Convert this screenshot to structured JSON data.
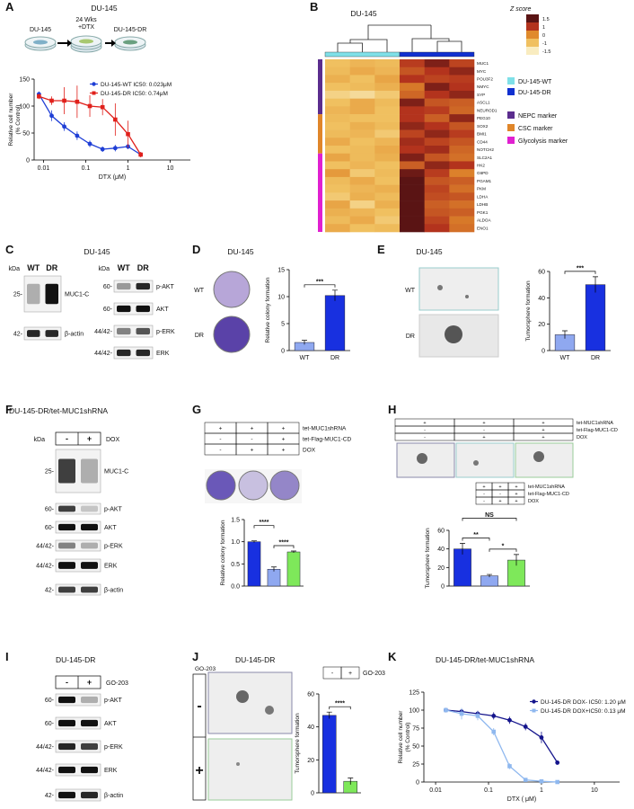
{
  "panels": {
    "A": {
      "letter": "A",
      "title": "DU-145",
      "steps": [
        "DU-145",
        "24 Wks",
        "+DTX",
        "DU-145-DR"
      ],
      "chart": {
        "type": "line",
        "xlabel": "DTX (μM)",
        "ylabel": [
          "Relative cell number",
          "(% Control)"
        ],
        "log_x": true,
        "xlim": [
          0.006,
          30
        ],
        "xticks": [
          0.01,
          0.1,
          1,
          10
        ],
        "ylim": [
          0,
          150
        ],
        "yticks": [
          0,
          50,
          100,
          150
        ],
        "series": [
          {
            "name": "DU-145-WT IC50:  0.023μM",
            "color": "#1f3fd6",
            "marker": "circle",
            "x": [
              0.0078,
              0.0156,
              0.031,
              0.0625,
              0.125,
              0.25,
              0.5,
              1,
              2
            ],
            "values": [
              122,
              82,
              62,
              45,
              30,
              20,
              22,
              25,
              10
            ],
            "errors": [
              5,
              10,
              8,
              8,
              6,
              5,
              6,
              5,
              3
            ]
          },
          {
            "name": "DU-145-DR  IC50:  0.74μM",
            "color": "#e0201b",
            "marker": "square",
            "x": [
              0.0078,
              0.0156,
              0.031,
              0.0625,
              0.125,
              0.25,
              0.5,
              1,
              2
            ],
            "values": [
              118,
              110,
              110,
              108,
              100,
              98,
              75,
              48,
              10
            ],
            "errors": [
              5,
              8,
              25,
              30,
              20,
              15,
              30,
              25,
              5
            ]
          }
        ]
      }
    },
    "B": {
      "letter": "B",
      "heatmap": {
        "title": "DU-145",
        "colorbar_title": "Z score",
        "colorbar_ticks": [
          1.5,
          1,
          0,
          -1,
          -1.5
        ],
        "colors": [
          "#5a1414",
          "#b3331d",
          "#e08a2c",
          "#f0c060",
          "#f9ecc0"
        ],
        "clim": [
          -1.5,
          1.5
        ],
        "columns": [
          {
            "name": "DU-145-WT",
            "color": "#7fe0e8"
          },
          {
            "name": "DU-145-DR",
            "color": "#1030d0"
          }
        ],
        "groups": [
          {
            "name": "NEPC marker",
            "color": "#5b2d8e",
            "genes": [
              "MUC1",
              "MYC",
              "POU3F2",
              "NMYC",
              "SYP",
              "ASCL1",
              "NEUROD1"
            ]
          },
          {
            "name": "CSC marker",
            "color": "#e0862a",
            "genes": [
              "PEG10",
              "SOX2",
              "BMI1",
              "CD44",
              "NOTCH2"
            ]
          },
          {
            "name": "Glycolysis marker",
            "color": "#e020d0",
            "genes": [
              "SLC2A1",
              "HK2",
              "G6PD",
              "PGAM1",
              "PKM",
              "LDHA",
              "LDHB",
              "PGK1",
              "ALDOA",
              "ENO1"
            ]
          }
        ],
        "values": [
          [
            -1,
            -0.8,
            -0.9,
            0.9,
            1.3,
            0.8
          ],
          [
            -0.9,
            -0.6,
            -0.8,
            0.6,
            1,
            1.2
          ],
          [
            -0.7,
            -1,
            -0.5,
            1,
            0.8,
            0.9
          ],
          [
            -1,
            -0.9,
            -0.7,
            0.2,
            1.3,
            1
          ],
          [
            -1.2,
            -1.3,
            -1.1,
            0.4,
            1,
            1.2
          ],
          [
            -1,
            -0.6,
            -0.9,
            1.3,
            0.6,
            0.5
          ],
          [
            -0.8,
            -0.6,
            -1,
            1,
            0.9,
            0.4
          ],
          [
            -0.9,
            -1,
            -1,
            1,
            0.5,
            1.2
          ],
          [
            -1,
            -0.7,
            -0.9,
            1.2,
            1,
            0.6
          ],
          [
            -0.9,
            -0.8,
            -1.1,
            0.8,
            1.2,
            0.9
          ],
          [
            -0.6,
            -1,
            -0.8,
            1.1,
            0.8,
            0.6
          ],
          [
            -1,
            -0.9,
            -0.6,
            1,
            1.1,
            0.4
          ],
          [
            -0.5,
            -0.9,
            -0.7,
            1.3,
            0.6,
            0.3
          ],
          [
            -1,
            -0.8,
            -1,
            0.5,
            1.2,
            1
          ],
          [
            -0.3,
            -1.1,
            -0.9,
            1.4,
            0.9,
            0.1
          ],
          [
            -0.9,
            -0.6,
            -1,
            1.5,
            0.6,
            0.5
          ],
          [
            -1,
            -0.8,
            -0.7,
            1.5,
            0.8,
            0.3
          ],
          [
            -1.1,
            -0.7,
            -0.9,
            1.5,
            0.7,
            0.6
          ],
          [
            -0.5,
            -1.2,
            -0.7,
            1.5,
            0.5,
            0.3
          ],
          [
            -0.7,
            -0.8,
            -1,
            1.5,
            0.6,
            0.5
          ],
          [
            -0.9,
            -0.6,
            -1.1,
            1.5,
            0.8,
            0.2
          ],
          [
            -0.6,
            -1,
            -0.9,
            1.5,
            1,
            0.3
          ]
        ]
      }
    },
    "C": {
      "letter": "C",
      "title": "DU-145",
      "blot_left": {
        "kda": "kDa",
        "lanes": [
          "WT",
          "DR"
        ],
        "rows": [
          {
            "size": "25-",
            "name": "MUC1-C"
          },
          {
            "size": "42-",
            "name": "β-actin"
          }
        ]
      },
      "blot_right": {
        "kda": "kDa",
        "lanes": [
          "WT",
          "DR"
        ],
        "rows": [
          {
            "size": "60-",
            "name": "p-AKT"
          },
          {
            "size": "60-",
            "name": "AKT"
          },
          {
            "size": "44/42-",
            "name": "p-ERK"
          },
          {
            "size": "44/42-",
            "name": "ERK"
          }
        ]
      }
    },
    "D": {
      "letter": "D",
      "title": "DU-145",
      "plates": [
        "WT",
        "DR"
      ],
      "chart": {
        "type": "bar",
        "ylabel": "Relative colony formation",
        "categories": [
          "WT",
          "DR"
        ],
        "values": [
          1.5,
          10.2
        ],
        "errors": [
          0.4,
          1
        ],
        "colors": [
          "#8fa8f0",
          "#1830e0"
        ],
        "ylim": [
          0,
          15
        ],
        "yticks": [
          0,
          5,
          10,
          15
        ],
        "annotations": [
          "***"
        ]
      }
    },
    "E": {
      "letter": "E",
      "title": "DU-145",
      "images": [
        "WT",
        "DR"
      ],
      "chart": {
        "type": "bar",
        "ylabel": "Tumorsphere formation",
        "categories": [
          "WT",
          "DR"
        ],
        "values": [
          12,
          50
        ],
        "errors": [
          3,
          6
        ],
        "colors": [
          "#8fa8f0",
          "#1830e0"
        ],
        "ylim": [
          0,
          60
        ],
        "yticks": [
          0,
          20,
          40,
          60
        ],
        "annotations": [
          "***"
        ]
      }
    },
    "F": {
      "letter": "F",
      "title": "DU-145-DR/tet-MUC1shRNA",
      "blot": {
        "kda": "kDa",
        "lanes": [
          "-",
          "+"
        ],
        "treatment": "DOX",
        "rows": [
          {
            "size": "25-",
            "name": "MUC1-C"
          },
          {
            "size": "60-",
            "name": "p-AKT"
          },
          {
            "size": "60-",
            "name": "AKT"
          },
          {
            "size": "44/42-",
            "name": "p-ERK"
          },
          {
            "size": "44/42-",
            "name": "ERK"
          },
          {
            "size": "42-",
            "name": "β-actin"
          }
        ]
      }
    },
    "G": {
      "letter": "G",
      "table": {
        "rows": [
          {
            "label": "tet-MUC1shRNA",
            "signs": [
              "+",
              "+",
              "+"
            ]
          },
          {
            "label": "tet-Flag-MUC1-CD",
            "signs": [
              "-",
              "-",
              "+"
            ]
          },
          {
            "label": "DOX",
            "signs": [
              "-",
              "+",
              "+"
            ]
          }
        ]
      },
      "chart": {
        "type": "bar",
        "ylabel": "Relative colony formation",
        "values": [
          1,
          0.38,
          0.77
        ],
        "errors": [
          0.02,
          0.05,
          0.02
        ],
        "colors": [
          "#1830e0",
          "#8fa8f0",
          "#7ee85a"
        ],
        "ylim": [
          0,
          1.5
        ],
        "yticks": [
          {
            "value": 0,
            "label": "0.0"
          },
          {
            "value": 0.5,
            "label": "0.5"
          },
          {
            "value": 1,
            "label": "1.0"
          },
          {
            "value": 1.5,
            "label": "1.5"
          }
        ],
        "annotations": [
          "****",
          "****"
        ]
      }
    },
    "H": {
      "letter": "H",
      "table_top": {
        "rows": [
          {
            "label": "tet-MUC1shRNA",
            "signs": [
              "+",
              "+",
              "+"
            ]
          },
          {
            "label": "tet-Flag-MUC1-CD",
            "signs": [
              "-",
              "-",
              "+"
            ]
          },
          {
            "label": "DOX",
            "signs": [
              "-",
              "+",
              "+"
            ]
          }
        ]
      },
      "table_bottom": {
        "rows": [
          {
            "label": "tet-MUC1shRNA",
            "signs": [
              "+",
              "+",
              "+"
            ]
          },
          {
            "label": "tet-Flag-MUC1-CD",
            "signs": [
              "-",
              "-",
              "+"
            ]
          },
          {
            "label": "DOX",
            "signs": [
              "-",
              "+",
              "+"
            ]
          }
        ]
      },
      "chart": {
        "type": "bar",
        "ylabel": "Tumorsphere formation",
        "values": [
          40,
          11,
          28
        ],
        "errors": [
          6,
          1.5,
          6
        ],
        "colors": [
          "#1830e0",
          "#8fa8f0",
          "#7ee85a"
        ],
        "ylim": [
          0,
          60
        ],
        "yticks": [
          0,
          20,
          40,
          60
        ],
        "annotations": [
          "NS",
          "**",
          "*"
        ]
      }
    },
    "I": {
      "letter": "I",
      "title": "DU-145-DR",
      "blot": {
        "kda": "",
        "lanes": [
          "-",
          "+"
        ],
        "treatment": "GO-203",
        "rows": [
          {
            "size": "60-",
            "name": "p-AKT"
          },
          {
            "size": "60-",
            "name": "AKT"
          },
          {
            "size": "44/42-",
            "name": "p-ERK"
          },
          {
            "size": "44/42-",
            "name": "ERK"
          },
          {
            "size": "42-",
            "name": "β-actin"
          }
        ]
      }
    },
    "J": {
      "letter": "J",
      "title": "DU-145-DR",
      "treatment": "GO-203",
      "side_signs": [
        "-",
        "+"
      ],
      "table": {
        "rows": [
          {
            "label": "GO-203",
            "signs": [
              "-",
              "+"
            ]
          }
        ]
      },
      "chart": {
        "type": "bar",
        "ylabel": "Tumorsphere formation",
        "values": [
          47,
          7
        ],
        "errors": [
          2,
          2
        ],
        "colors": [
          "#1830e0",
          "#7ee85a"
        ],
        "ylim": [
          0,
          60
        ],
        "yticks": [
          0,
          20,
          40,
          60
        ],
        "annotations": [
          "****"
        ]
      }
    },
    "K": {
      "letter": "K",
      "title": "DU-145-DR/tet-MUC1shRNA",
      "chart": {
        "type": "line",
        "xlabel": "DTX ( μM)",
        "ylabel": [
          "Relative cell number",
          "(% Control)"
        ],
        "log_x": true,
        "xlim": [
          0.006,
          30
        ],
        "xticks": [
          0.01,
          0.1,
          1,
          10
        ],
        "ylim": [
          0,
          125
        ],
        "yticks": [
          0,
          25,
          50,
          75,
          100,
          125
        ],
        "series": [
          {
            "name": "DU-145-DR DOX- IC50: 1.20   μM",
            "color": "#14148c",
            "marker": "circle",
            "x": [
              0.0156,
              0.031,
              0.0625,
              0.125,
              0.25,
              0.5,
              1,
              2
            ],
            "values": [
              100,
              98,
              95,
              92,
              86,
              77,
              62,
              27
            ],
            "errors": [
              3,
              3,
              4,
              5,
              5,
              5,
              8,
              3
            ]
          },
          {
            "name": "DU-145-DR DOX+IC50: 0.13   μM",
            "color": "#8fb8ef",
            "marker": "square",
            "x": [
              0.0156,
              0.031,
              0.0625,
              0.125,
              0.25,
              0.5,
              1,
              2
            ],
            "values": [
              100,
              95,
              92,
              70,
              22,
              3,
              1,
              0
            ],
            "errors": [
              3,
              8,
              6,
              5,
              4,
              2,
              1,
              1
            ]
          }
        ]
      }
    }
  }
}
